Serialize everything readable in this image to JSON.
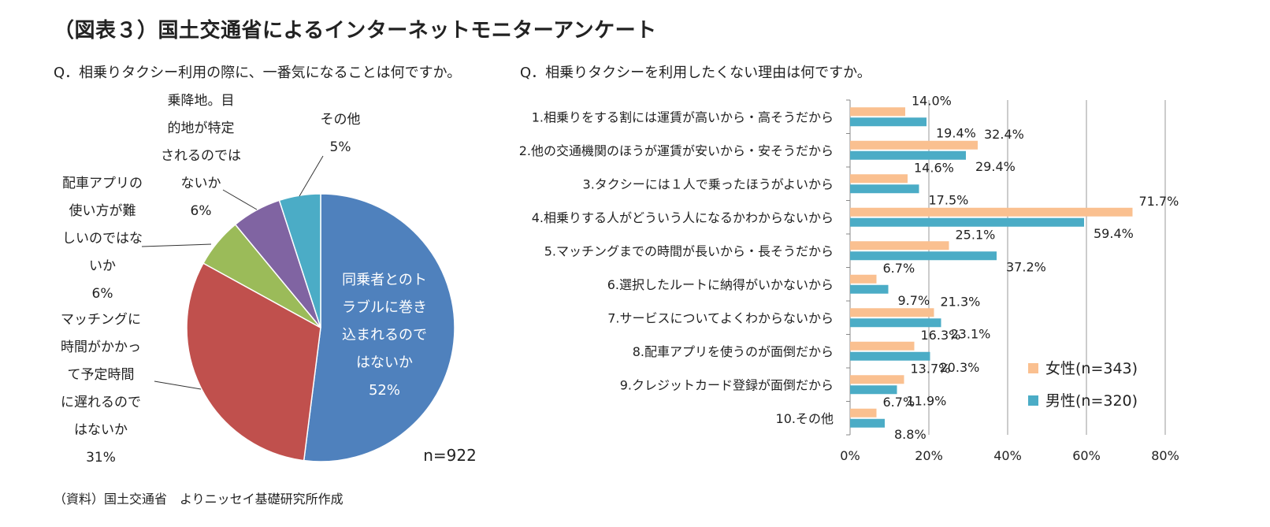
{
  "title": "（図表３）国土交通省によるインターネットモニターアンケート",
  "source": "（資料）国土交通省　よりニッセイ基礎研究所作成",
  "chart_data": [
    {
      "type": "pie",
      "question": "Q．相乗りタクシー利用の際に、一番気になることは何ですか。",
      "n_label": "n=922",
      "slices": [
        {
          "lines": [
            "同乗者とのト",
            "ラブルに巻き",
            "込まれるので",
            "はないか"
          ],
          "pct_label": "52%",
          "value": 52,
          "color": "#4f81bd"
        },
        {
          "lines": [
            "マッチングに",
            "時間がかかっ",
            "て予定時間",
            "に遅れるので",
            "はないか"
          ],
          "pct_label": "31%",
          "value": 31,
          "color": "#c0504d"
        },
        {
          "lines": [
            "配車アプリの",
            "使い方が難",
            "しいのではな",
            "いか"
          ],
          "pct_label": "6%",
          "value": 6,
          "color": "#9bbb59"
        },
        {
          "lines": [
            "乗降地。目",
            "的地が特定",
            "されるのでは",
            "ないか"
          ],
          "pct_label": "6%",
          "value": 6,
          "color": "#8064a2"
        },
        {
          "lines": [
            "その他"
          ],
          "pct_label": "5%",
          "value": 5,
          "color": "#4bacc6"
        }
      ]
    },
    {
      "type": "bar",
      "orientation": "horizontal",
      "question": "Q．相乗りタクシーを利用したくない理由は何ですか。",
      "categories": [
        "1.相乗りをする割には運賃が高いから・高そうだから",
        "2.他の交通機関のほうが運賃が安いから・安そうだから",
        "3.タクシーには１人で乗ったほうがよいから",
        "4.相乗りする人がどういう人になるかわからないから",
        "5.マッチングまでの時間が長いから・長そうだから",
        "6.選択したルートに納得がいかないから",
        "7.サービスについてよくわからないから",
        "8.配車アプリを使うのが面倒だから",
        "9.クレジットカード登録が面倒だから",
        "10.その他"
      ],
      "series": [
        {
          "name": "女性(n=343)",
          "color": "#fac090",
          "values": [
            14.0,
            32.4,
            14.6,
            71.7,
            25.1,
            6.7,
            21.3,
            16.3,
            13.7,
            6.7
          ],
          "labels": [
            "14.0%",
            "32.4%",
            "14.6%",
            "71.7%",
            "25.1%",
            "6.7%",
            "21.3%",
            "16.3%",
            "13.7%",
            "6.7%"
          ]
        },
        {
          "name": "男性(n=320)",
          "color": "#4bacc6",
          "values": [
            19.4,
            29.4,
            17.5,
            59.4,
            37.2,
            9.7,
            23.1,
            20.3,
            11.9,
            8.8
          ],
          "labels": [
            "19.4%",
            "29.4%",
            "17.5%",
            "59.4%",
            "37.2%",
            "9.7%",
            "23.1%",
            "20.3%",
            "11.9%",
            "8.8%"
          ]
        }
      ],
      "xlim": [
        0,
        80
      ],
      "xticks": [
        "0%",
        "20%",
        "40%",
        "60%",
        "80%"
      ],
      "grid": true,
      "legend": "bottom-right"
    }
  ]
}
